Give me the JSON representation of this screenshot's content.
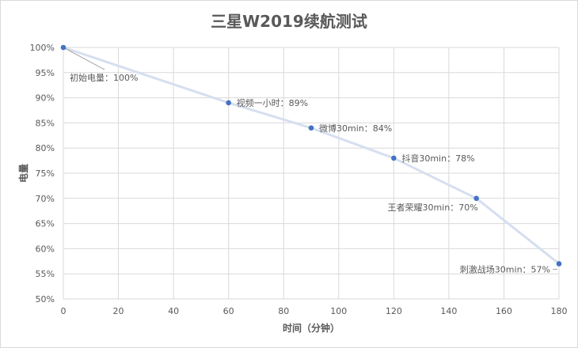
{
  "chart_data": {
    "type": "line",
    "title": "三星W2019续航测试",
    "xlabel": "时间（分钟）",
    "ylabel": "电量",
    "xlim": [
      0,
      180
    ],
    "ylim": [
      50,
      100
    ],
    "x_ticks": [
      "0",
      "20",
      "40",
      "60",
      "80",
      "100",
      "120",
      "140",
      "160",
      "180"
    ],
    "y_ticks": [
      "50%",
      "55%",
      "60%",
      "65%",
      "70%",
      "75%",
      "80%",
      "85%",
      "90%",
      "95%",
      "100%"
    ],
    "grid": true,
    "series": [
      {
        "x": [
          0,
          60,
          90,
          120,
          150,
          180
        ],
        "y": [
          100,
          89,
          84,
          78,
          70,
          57
        ],
        "labels": [
          "初始电量：100%",
          "视频一小时：89%",
          "微博30min：84%",
          "抖音30min：78%",
          "王者荣耀30min：70%",
          "刺激战场30min：57%"
        ]
      }
    ],
    "line_color": "#d6dff0",
    "marker_color": "#4472c4"
  }
}
